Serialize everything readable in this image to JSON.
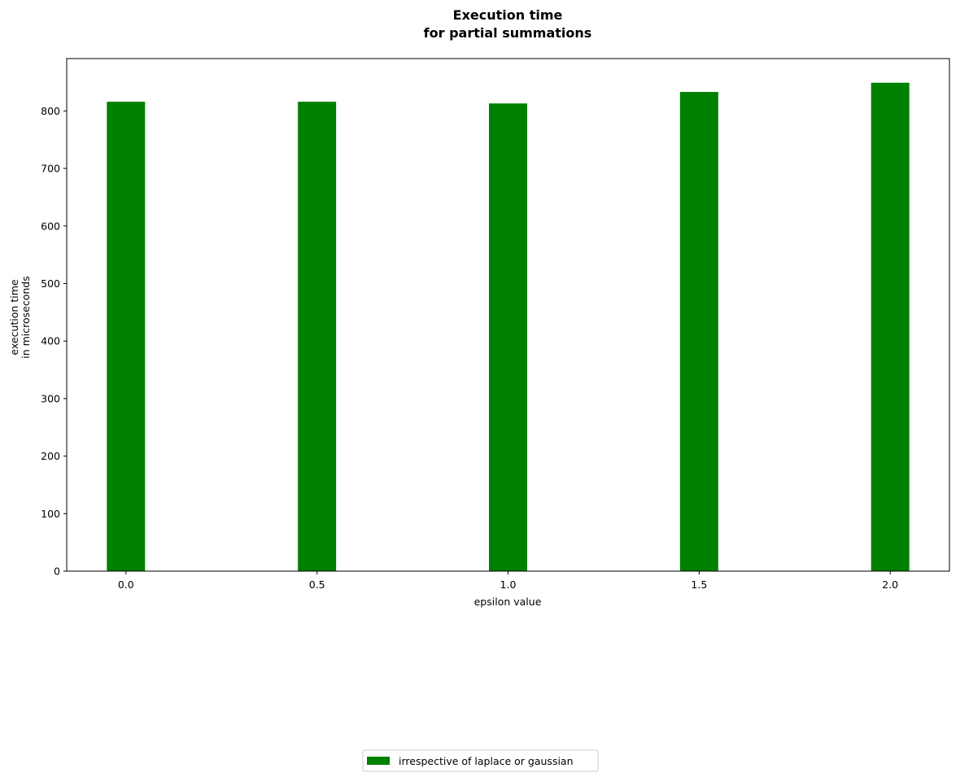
{
  "chart_data": {
    "type": "bar",
    "title_lines": [
      "Execution time",
      "for partial summations"
    ],
    "xlabel": "epsilon value",
    "ylabel_lines": [
      "execution time",
      "in microseconds"
    ],
    "categories": [
      "0.0",
      "0.5",
      "1.0",
      "1.5",
      "2.0"
    ],
    "x": [
      0.0,
      0.5,
      1.0,
      1.5,
      2.0
    ],
    "series": [
      {
        "name": "irrespective of laplace or gaussian",
        "color": "#008000",
        "values": [
          816,
          816,
          813,
          833,
          849
        ]
      }
    ],
    "xlim": [
      -0.155,
      2.155
    ],
    "ylim": [
      0,
      891
    ],
    "yticks": [
      0,
      100,
      200,
      300,
      400,
      500,
      600,
      700,
      800
    ],
    "bar_width": 0.1,
    "grid": false,
    "legend_position": "bottom-center"
  }
}
